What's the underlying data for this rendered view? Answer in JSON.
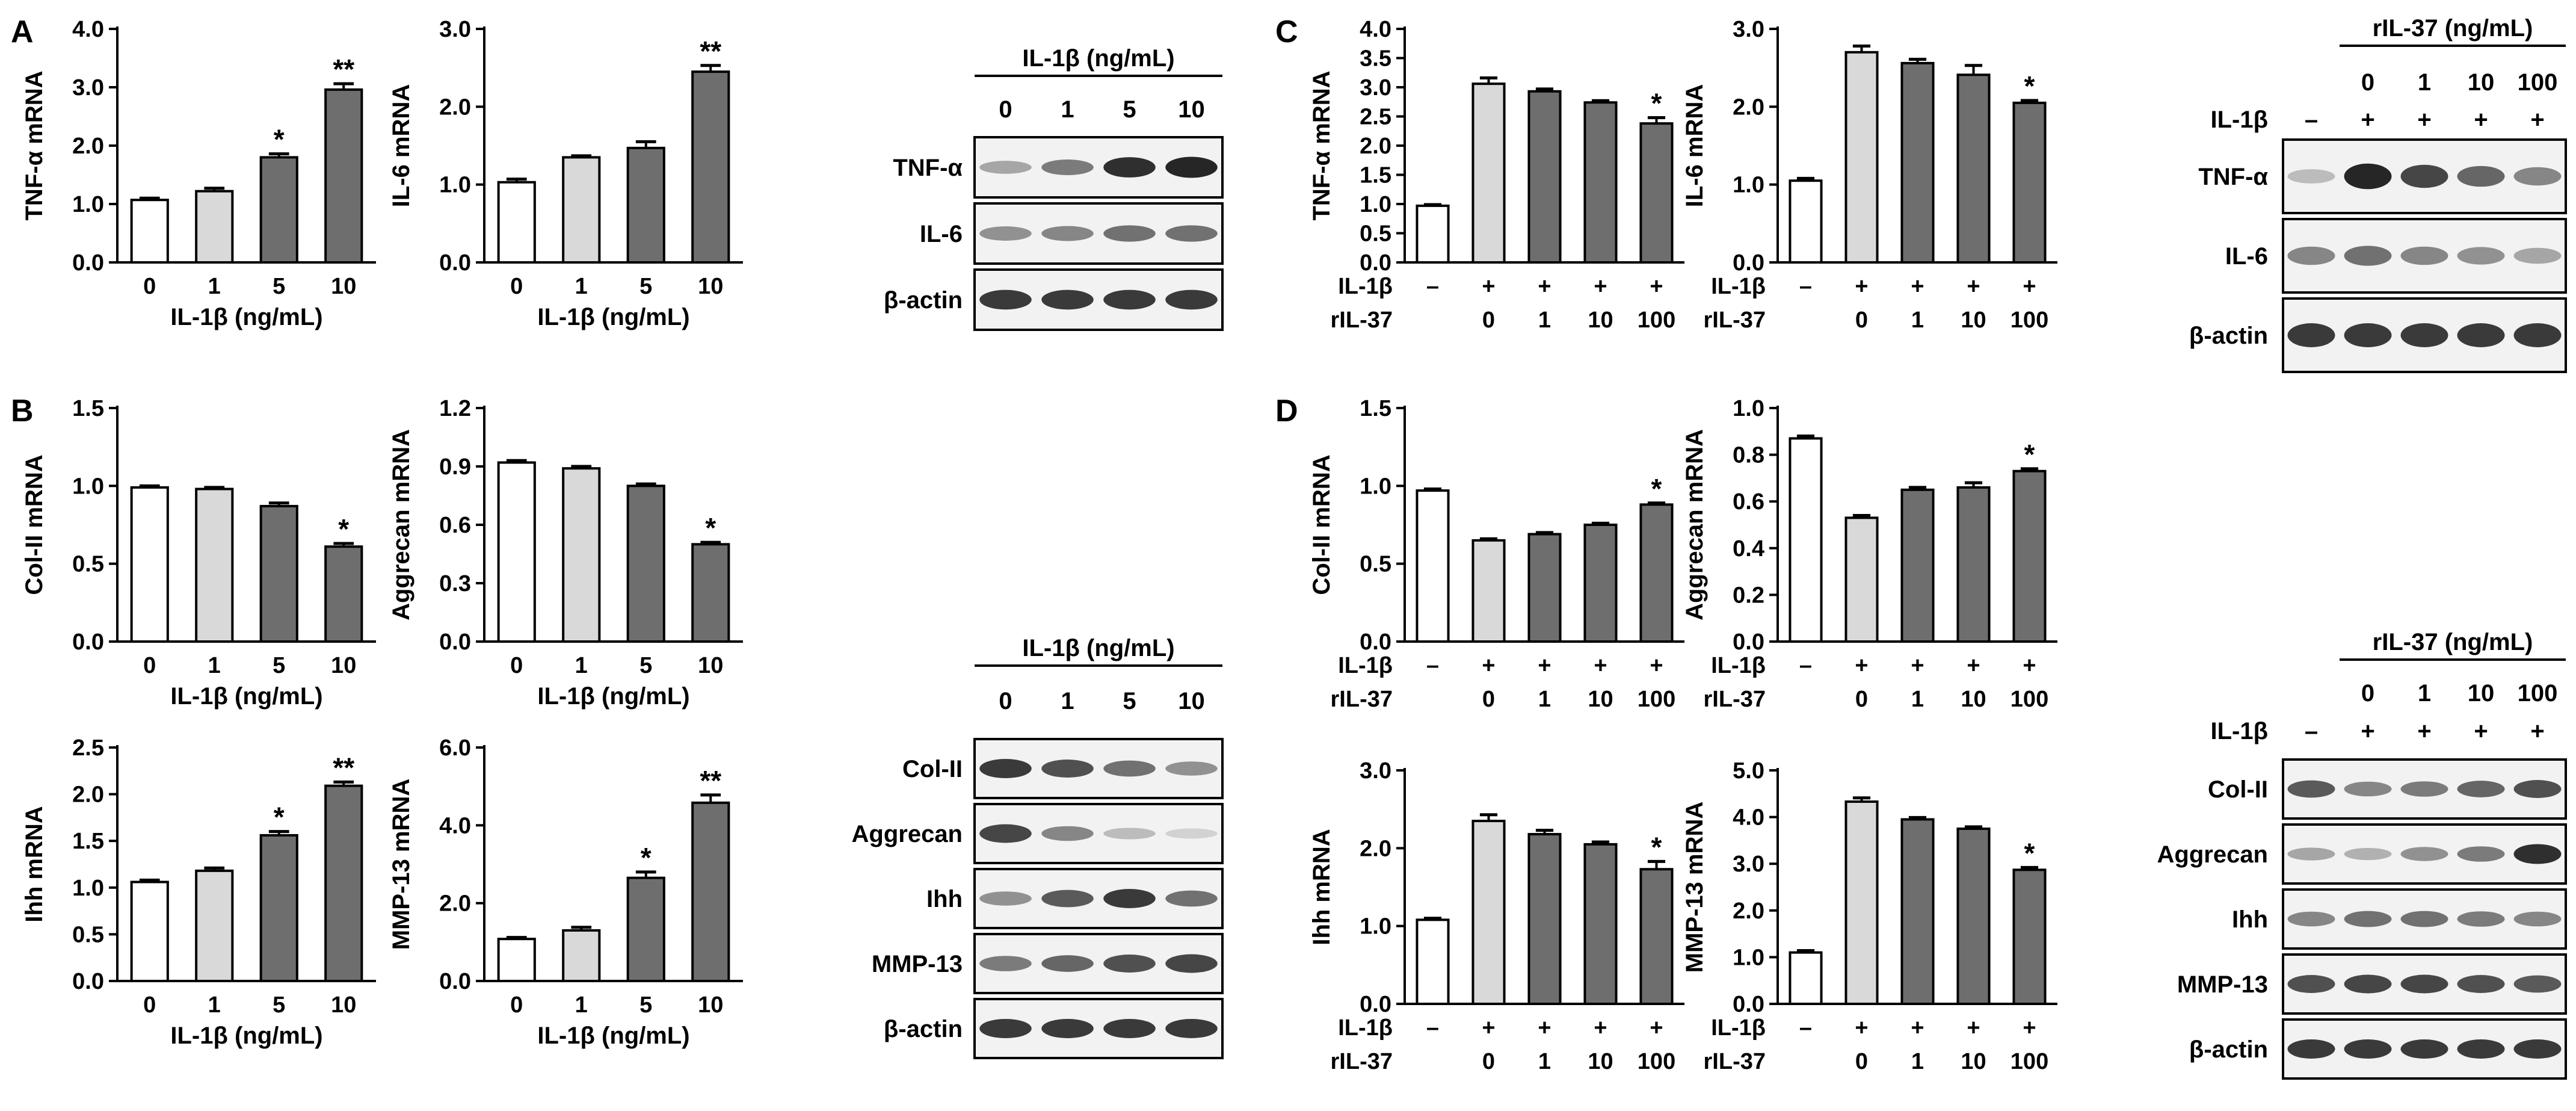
{
  "panels": [
    "A",
    "B",
    "C",
    "D"
  ],
  "colors": {
    "dose0": "#ffffff",
    "dose_low": "#d9d9d9",
    "dose_high": "#6e6e6e",
    "blot_bg": "#f2f2f2",
    "blot_band": "#1a1a1a"
  },
  "chart_data": [
    {
      "id": "A1",
      "type": "bar",
      "ylabel": "TNF-α mRNA",
      "xlabel": "IL-1β (ng/mL)",
      "categories": [
        "0",
        "1",
        "5",
        "10"
      ],
      "values": [
        1.07,
        1.22,
        1.8,
        2.96
      ],
      "errors": [
        0.03,
        0.05,
        0.06,
        0.1
      ],
      "signif": [
        "",
        "",
        "*",
        "**"
      ],
      "ylim": [
        0,
        4.0
      ],
      "yticks": [
        "0.0",
        "1.0",
        "2.0",
        "3.0",
        "4.0"
      ]
    },
    {
      "id": "A2",
      "type": "bar",
      "ylabel": "IL-6 mRNA",
      "xlabel": "IL-1β (ng/mL)",
      "categories": [
        "0",
        "1",
        "5",
        "10"
      ],
      "values": [
        1.03,
        1.35,
        1.47,
        2.45
      ],
      "errors": [
        0.04,
        0.02,
        0.08,
        0.08
      ],
      "signif": [
        "",
        "",
        "",
        "**"
      ],
      "ylim": [
        0,
        3.0
      ],
      "yticks": [
        "0.0",
        "1.0",
        "2.0",
        "3.0"
      ]
    },
    {
      "id": "B1",
      "type": "bar",
      "ylabel": "Col-II mRNA",
      "xlabel": "IL-1β (ng/mL)",
      "categories": [
        "0",
        "1",
        "5",
        "10"
      ],
      "values": [
        0.99,
        0.98,
        0.87,
        0.61
      ],
      "errors": [
        0.01,
        0.01,
        0.02,
        0.02
      ],
      "signif": [
        "",
        "",
        "",
        "*"
      ],
      "ylim": [
        0,
        1.5
      ],
      "yticks": [
        "0.0",
        "0.5",
        "1.0",
        "1.5"
      ]
    },
    {
      "id": "B2",
      "type": "bar",
      "ylabel": "Aggrecan mRNA",
      "xlabel": "IL-1β (ng/mL)",
      "categories": [
        "0",
        "1",
        "5",
        "10"
      ],
      "values": [
        0.92,
        0.89,
        0.8,
        0.5
      ],
      "errors": [
        0.01,
        0.01,
        0.01,
        0.01
      ],
      "signif": [
        "",
        "",
        "",
        "*"
      ],
      "ylim": [
        0,
        1.2
      ],
      "yticks": [
        "0.0",
        "0.3",
        "0.6",
        "0.9",
        "1.2"
      ]
    },
    {
      "id": "B3",
      "type": "bar",
      "ylabel": "Ihh mRNA",
      "xlabel": "IL-1β (ng/mL)",
      "categories": [
        "0",
        "1",
        "5",
        "10"
      ],
      "values": [
        1.06,
        1.18,
        1.56,
        2.09
      ],
      "errors": [
        0.02,
        0.03,
        0.04,
        0.04
      ],
      "signif": [
        "",
        "",
        "*",
        "**"
      ],
      "ylim": [
        0,
        2.5
      ],
      "yticks": [
        "0.0",
        "0.5",
        "1.0",
        "1.5",
        "2.0",
        "2.5"
      ]
    },
    {
      "id": "B4",
      "type": "bar",
      "ylabel": "MMP-13 mRNA",
      "xlabel": "IL-1β (ng/mL)",
      "categories": [
        "0",
        "1",
        "5",
        "10"
      ],
      "values": [
        1.08,
        1.3,
        2.65,
        4.58
      ],
      "errors": [
        0.04,
        0.08,
        0.15,
        0.2
      ],
      "signif": [
        "",
        "",
        "*",
        "**"
      ],
      "ylim": [
        0,
        6.0
      ],
      "yticks": [
        "0.0",
        "2.0",
        "4.0",
        "6.0"
      ]
    },
    {
      "id": "C1",
      "type": "bar",
      "ylabel": "TNF-α mRNA",
      "xrows": [
        {
          "label": "IL-1β",
          "vals": [
            "–",
            "+",
            "+",
            "+",
            "+"
          ]
        },
        {
          "label": "rIL-37",
          "vals": [
            "",
            "0",
            "1",
            "10",
            "100"
          ]
        }
      ],
      "values": [
        0.97,
        3.06,
        2.93,
        2.74,
        2.38
      ],
      "errors": [
        0.02,
        0.1,
        0.04,
        0.03,
        0.1
      ],
      "signif": [
        "",
        "",
        "",
        "",
        "*"
      ],
      "ylim": [
        0,
        4.0
      ],
      "yticks": [
        "0.0",
        "0.5",
        "1.0",
        "1.5",
        "2.0",
        "2.5",
        "3.0",
        "3.5",
        "4.0"
      ]
    },
    {
      "id": "C2",
      "type": "bar",
      "ylabel": "IL-6 mRNA",
      "xrows": [
        {
          "label": "IL-1β",
          "vals": [
            "–",
            "+",
            "+",
            "+",
            "+"
          ]
        },
        {
          "label": "rIL-37",
          "vals": [
            "",
            "0",
            "1",
            "10",
            "100"
          ]
        }
      ],
      "values": [
        1.05,
        2.7,
        2.56,
        2.41,
        2.05
      ],
      "errors": [
        0.03,
        0.08,
        0.05,
        0.12,
        0.03
      ],
      "signif": [
        "",
        "",
        "",
        "",
        "*"
      ],
      "ylim": [
        0,
        3.0
      ],
      "yticks": [
        "0.0",
        "1.0",
        "2.0",
        "3.0"
      ]
    },
    {
      "id": "D1",
      "type": "bar",
      "ylabel": "Col-II mRNA",
      "xrows": [
        {
          "label": "IL-1β",
          "vals": [
            "–",
            "+",
            "+",
            "+",
            "+"
          ]
        },
        {
          "label": "rIL-37",
          "vals": [
            "",
            "0",
            "1",
            "10",
            "100"
          ]
        }
      ],
      "values": [
        0.97,
        0.65,
        0.69,
        0.75,
        0.88
      ],
      "errors": [
        0.01,
        0.01,
        0.01,
        0.01,
        0.01
      ],
      "signif": [
        "",
        "",
        "",
        "",
        "*"
      ],
      "ylim": [
        0,
        1.5
      ],
      "yticks": [
        "0.0",
        "0.5",
        "1.0",
        "1.5"
      ]
    },
    {
      "id": "D2",
      "type": "bar",
      "ylabel": "Aggrecan mRNA",
      "xrows": [
        {
          "label": "IL-1β",
          "vals": [
            "–",
            "+",
            "+",
            "+",
            "+"
          ]
        },
        {
          "label": "rIL-37",
          "vals": [
            "",
            "0",
            "1",
            "10",
            "100"
          ]
        }
      ],
      "values": [
        0.87,
        0.53,
        0.65,
        0.66,
        0.73
      ],
      "errors": [
        0.01,
        0.01,
        0.01,
        0.02,
        0.01
      ],
      "signif": [
        "",
        "",
        "",
        "",
        "*"
      ],
      "ylim": [
        0,
        1.0
      ],
      "yticks": [
        "0.0",
        "0.2",
        "0.4",
        "0.6",
        "0.8",
        "1.0"
      ]
    },
    {
      "id": "D3",
      "type": "bar",
      "ylabel": "Ihh mRNA",
      "xrows": [
        {
          "label": "IL-1β",
          "vals": [
            "–",
            "+",
            "+",
            "+",
            "+"
          ]
        },
        {
          "label": "rIL-37",
          "vals": [
            "",
            "0",
            "1",
            "10",
            "100"
          ]
        }
      ],
      "values": [
        1.08,
        2.35,
        2.18,
        2.05,
        1.73
      ],
      "errors": [
        0.02,
        0.08,
        0.05,
        0.03,
        0.1
      ],
      "signif": [
        "",
        "",
        "",
        "",
        "*"
      ],
      "ylim": [
        0,
        3.0
      ],
      "yticks": [
        "0.0",
        "1.0",
        "2.0",
        "3.0"
      ]
    },
    {
      "id": "D4",
      "type": "bar",
      "ylabel": "MMP-13 mRNA",
      "xrows": [
        {
          "label": "IL-1β",
          "vals": [
            "–",
            "+",
            "+",
            "+",
            "+"
          ]
        },
        {
          "label": "rIL-37",
          "vals": [
            "",
            "0",
            "1",
            "10",
            "100"
          ]
        }
      ],
      "values": [
        1.1,
        4.33,
        3.95,
        3.75,
        2.87
      ],
      "errors": [
        0.04,
        0.08,
        0.04,
        0.04,
        0.05
      ],
      "signif": [
        "",
        "",
        "",
        "",
        "*"
      ],
      "ylim": [
        0,
        5.0
      ],
      "yticks": [
        "0.0",
        "1.0",
        "2.0",
        "3.0",
        "4.0",
        "5.0"
      ]
    }
  ],
  "blots": [
    {
      "id": "WA",
      "header": "IL-1β (ng/mL)",
      "lanes": [
        "0",
        "1",
        "5",
        "10"
      ],
      "bands": [
        "TNF-α",
        "IL-6",
        "β-actin"
      ]
    },
    {
      "id": "WB",
      "header": "IL-1β (ng/mL)",
      "lanes": [
        "0",
        "1",
        "5",
        "10"
      ],
      "bands": [
        "Col-II",
        "Aggrecan",
        "Ihh",
        "MMP-13",
        "β-actin"
      ]
    },
    {
      "id": "WC",
      "header": "rIL-37 (ng/mL)",
      "row_label": "IL-1β",
      "lanes_top": [
        "",
        "0",
        "1",
        "10",
        "100"
      ],
      "lanes_bottom": [
        "–",
        "+",
        "+",
        "+",
        "+"
      ],
      "bands": [
        "TNF-α",
        "IL-6",
        "β-actin"
      ]
    },
    {
      "id": "WD",
      "header": "rIL-37 (ng/mL)",
      "row_label": "IL-1β",
      "lanes_top": [
        "",
        "0",
        "1",
        "10",
        "100"
      ],
      "lanes_bottom": [
        "–",
        "+",
        "+",
        "+",
        "+"
      ],
      "bands": [
        "Col-II",
        "Aggrecan",
        "Ihh",
        "MMP-13",
        "β-actin"
      ]
    }
  ]
}
